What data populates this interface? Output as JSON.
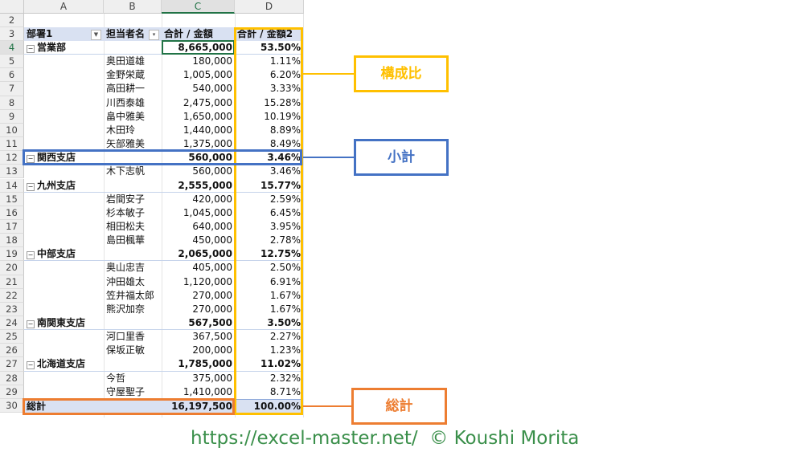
{
  "columns": [
    "A",
    "B",
    "C",
    "D"
  ],
  "header": {
    "row": "3",
    "dept": "部署1",
    "person": "担当者名",
    "sum": "合計 / 金額",
    "ratio": "合計 / 金額2"
  },
  "row2": "2",
  "rows": [
    {
      "r": "4",
      "type": "sub",
      "dept": "営業部",
      "amount": "8,665,000",
      "ratio": "53.50%"
    },
    {
      "r": "5",
      "name": "奥田道雄",
      "amount": "180,000",
      "ratio": "1.11%"
    },
    {
      "r": "6",
      "name": "金野栄蔵",
      "amount": "1,005,000",
      "ratio": "6.20%"
    },
    {
      "r": "7",
      "name": "高田耕一",
      "amount": "540,000",
      "ratio": "3.33%"
    },
    {
      "r": "8",
      "name": "川西泰雄",
      "amount": "2,475,000",
      "ratio": "15.28%"
    },
    {
      "r": "9",
      "name": "畠中雅美",
      "amount": "1,650,000",
      "ratio": "10.19%"
    },
    {
      "r": "10",
      "name": "木田玲",
      "amount": "1,440,000",
      "ratio": "8.89%"
    },
    {
      "r": "11",
      "name": "矢部雅美",
      "amount": "1,375,000",
      "ratio": "8.49%"
    },
    {
      "r": "12",
      "type": "sub",
      "dept": "関西支店",
      "amount": "560,000",
      "ratio": "3.46%"
    },
    {
      "r": "13",
      "name": "木下志帆",
      "amount": "560,000",
      "ratio": "3.46%"
    },
    {
      "r": "14",
      "type": "sub",
      "dept": "九州支店",
      "amount": "2,555,000",
      "ratio": "15.77%"
    },
    {
      "r": "15",
      "name": "岩間安子",
      "amount": "420,000",
      "ratio": "2.59%"
    },
    {
      "r": "16",
      "name": "杉本敏子",
      "amount": "1,045,000",
      "ratio": "6.45%"
    },
    {
      "r": "17",
      "name": "相田松夫",
      "amount": "640,000",
      "ratio": "3.95%"
    },
    {
      "r": "18",
      "name": "島田楓華",
      "amount": "450,000",
      "ratio": "2.78%"
    },
    {
      "r": "19",
      "type": "sub",
      "dept": "中部支店",
      "amount": "2,065,000",
      "ratio": "12.75%"
    },
    {
      "r": "20",
      "name": "奥山忠吉",
      "amount": "405,000",
      "ratio": "2.50%"
    },
    {
      "r": "21",
      "name": "沖田雄太",
      "amount": "1,120,000",
      "ratio": "6.91%"
    },
    {
      "r": "22",
      "name": "笠井福太郎",
      "amount": "270,000",
      "ratio": "1.67%"
    },
    {
      "r": "23",
      "name": "熊沢加奈",
      "amount": "270,000",
      "ratio": "1.67%"
    },
    {
      "r": "24",
      "type": "sub",
      "dept": "南関東支店",
      "amount": "567,500",
      "ratio": "3.50%"
    },
    {
      "r": "25",
      "name": "河口里香",
      "amount": "367,500",
      "ratio": "2.27%"
    },
    {
      "r": "26",
      "name": "保坂正敏",
      "amount": "200,000",
      "ratio": "1.23%"
    },
    {
      "r": "27",
      "type": "sub",
      "dept": "北海道支店",
      "amount": "1,785,000",
      "ratio": "11.02%"
    },
    {
      "r": "28",
      "name": "今哲",
      "amount": "375,000",
      "ratio": "2.32%"
    },
    {
      "r": "29",
      "name": "守屋聖子",
      "amount": "1,410,000",
      "ratio": "8.71%"
    },
    {
      "r": "30",
      "type": "tot",
      "dept": "総計",
      "amount": "16,197,500",
      "ratio": "100.00%"
    }
  ],
  "callouts": {
    "ratio": "構成比",
    "subtotal": "小計",
    "total": "総計"
  },
  "colors": {
    "ratio": "#ffc000",
    "subtotal": "#4472c4",
    "total": "#ed7d31",
    "footer": "#3a8f4a"
  },
  "footer": "https://excel-master.net/  © Koushi Morita"
}
